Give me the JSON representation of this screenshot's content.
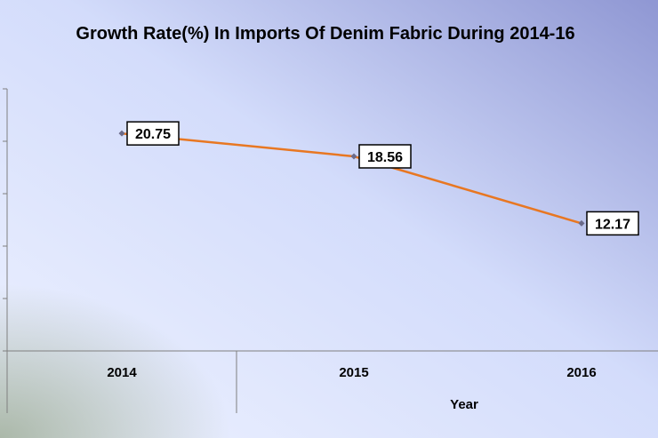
{
  "chart_data": {
    "type": "line",
    "title": "Growth Rate(%) In Imports Of Denim Fabric During 2014-16",
    "xlabel": "Year",
    "ylabel": "",
    "categories": [
      "2014",
      "2015",
      "2016"
    ],
    "series": [
      {
        "values": [
          20.75,
          18.56,
          12.17
        ]
      }
    ],
    "data_labels": [
      "20.75",
      "18.56",
      "12.17"
    ],
    "ylim": [
      0,
      25
    ],
    "grid": false,
    "legend": "none",
    "colors": {
      "line": "#E87722",
      "marker": "#6B6B8A",
      "background_light": "#DDE6FF",
      "background_dark": "#8A92D0",
      "label_box": "#FFFFFF"
    }
  }
}
